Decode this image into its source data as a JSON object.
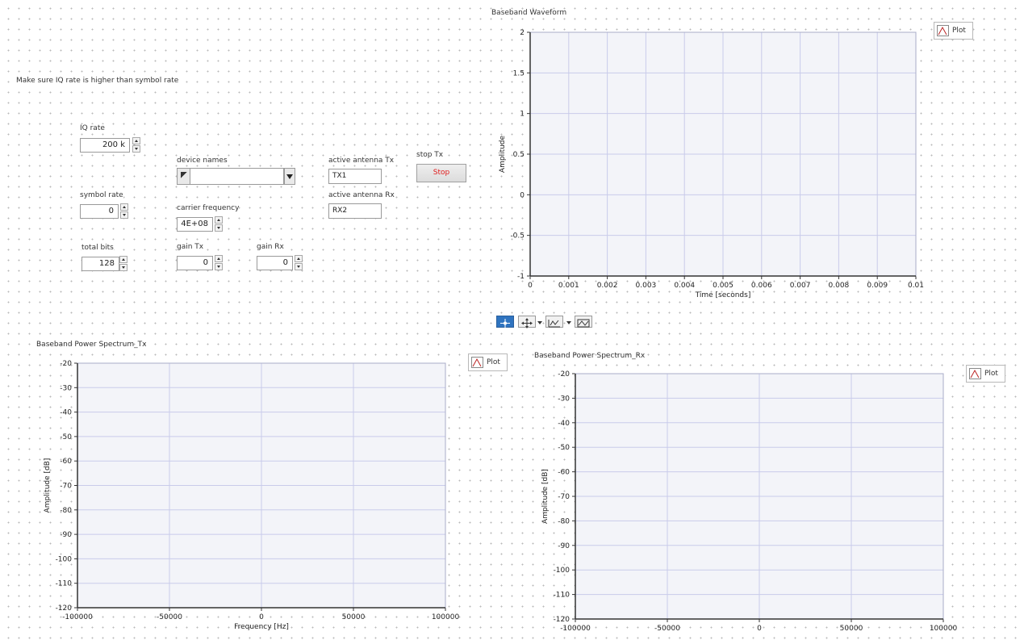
{
  "note": "Make sure IQ rate is higher than symbol rate",
  "controls": {
    "iq_rate": {
      "label": "IQ rate",
      "value": "200 k"
    },
    "symbol_rate": {
      "label": "symbol rate",
      "value": "0"
    },
    "total_bits": {
      "label": "total bits",
      "value": "128"
    },
    "device_names": {
      "label": "device names",
      "value": ""
    },
    "carrier_frequency": {
      "label": "carrier frequency",
      "value": "4E+08"
    },
    "gain_tx": {
      "label": "gain Tx",
      "value": "0"
    },
    "gain_rx": {
      "label": "gain Rx",
      "value": "0"
    },
    "active_antenna_tx": {
      "label": "active antenna Tx",
      "value": "TX1"
    },
    "active_antenna_rx": {
      "label": "active antenna Rx",
      "value": "RX2"
    },
    "stop_tx": {
      "label": "stop Tx",
      "button": "Stop"
    }
  },
  "toolbar_icons": [
    "crosshair-icon",
    "pan-icon",
    "zoom-icon",
    "autoscale-icon"
  ],
  "colors": {
    "plot_bg": "#f3f4f9",
    "grid": "#c9cbea",
    "stop_text": "#e01b1b",
    "tool_active": "#2f74c0"
  },
  "charts": {
    "waveform": {
      "title": "Baseband Waveform",
      "legend": "Plot",
      "xlabel": "Time [seconds]",
      "ylabel": "Amplitude",
      "xlim": [
        0,
        0.01
      ],
      "ylim": [
        -1,
        2
      ],
      "xticks": [
        "0",
        "0.001",
        "0.002",
        "0.003",
        "0.004",
        "0.005",
        "0.006",
        "0.007",
        "0.008",
        "0.009",
        "0.01"
      ],
      "yticks": [
        "-1",
        "-0.5",
        "0",
        "0.5",
        "1",
        "1.5",
        "2"
      ]
    },
    "spec_tx": {
      "title": "Baseband Power Spectrum_Tx",
      "legend": "Plot",
      "xlabel": "Frequency [Hz]",
      "ylabel": "Amplitude [dB]",
      "xlim": [
        -100000,
        100000
      ],
      "ylim": [
        -120,
        -20
      ],
      "xticks": [
        "-100000",
        "-50000",
        "0",
        "50000",
        "100000"
      ],
      "yticks": [
        "-120",
        "-110",
        "-100",
        "-90",
        "-80",
        "-70",
        "-60",
        "-50",
        "-40",
        "-30",
        "-20"
      ]
    },
    "spec_rx": {
      "title": "Baseband Power Spectrum_Rx",
      "legend": "Plot",
      "xlabel": "",
      "ylabel": "Amplitude [dB]",
      "xlim": [
        -100000,
        100000
      ],
      "ylim": [
        -120,
        -20
      ],
      "xticks": [
        "-100000",
        "-50000",
        "0",
        "50000",
        "100000"
      ],
      "yticks": [
        "-120",
        "-110",
        "-100",
        "-90",
        "-80",
        "-70",
        "-60",
        "-50",
        "-40",
        "-30",
        "-20"
      ]
    }
  },
  "chart_data": [
    {
      "type": "line",
      "title": "Baseband Waveform",
      "xlabel": "Time [seconds]",
      "ylabel": "Amplitude",
      "xlim": [
        0,
        0.01
      ],
      "ylim": [
        -1,
        2
      ],
      "grid": true,
      "legend": "top-right",
      "series": [
        {
          "name": "Plot",
          "x": [],
          "y": []
        }
      ]
    },
    {
      "type": "line",
      "title": "Baseband Power Spectrum_Tx",
      "xlabel": "Frequency [Hz]",
      "ylabel": "Amplitude [dB]",
      "xlim": [
        -100000,
        100000
      ],
      "ylim": [
        -120,
        -20
      ],
      "grid": true,
      "legend": "top-right",
      "series": [
        {
          "name": "Plot",
          "x": [],
          "y": []
        }
      ]
    },
    {
      "type": "line",
      "title": "Baseband Power Spectrum_Rx",
      "xlabel": "",
      "ylabel": "Amplitude [dB]",
      "xlim": [
        -100000,
        100000
      ],
      "ylim": [
        -120,
        -20
      ],
      "grid": true,
      "legend": "top-right",
      "series": [
        {
          "name": "Plot",
          "x": [],
          "y": []
        }
      ]
    }
  ]
}
